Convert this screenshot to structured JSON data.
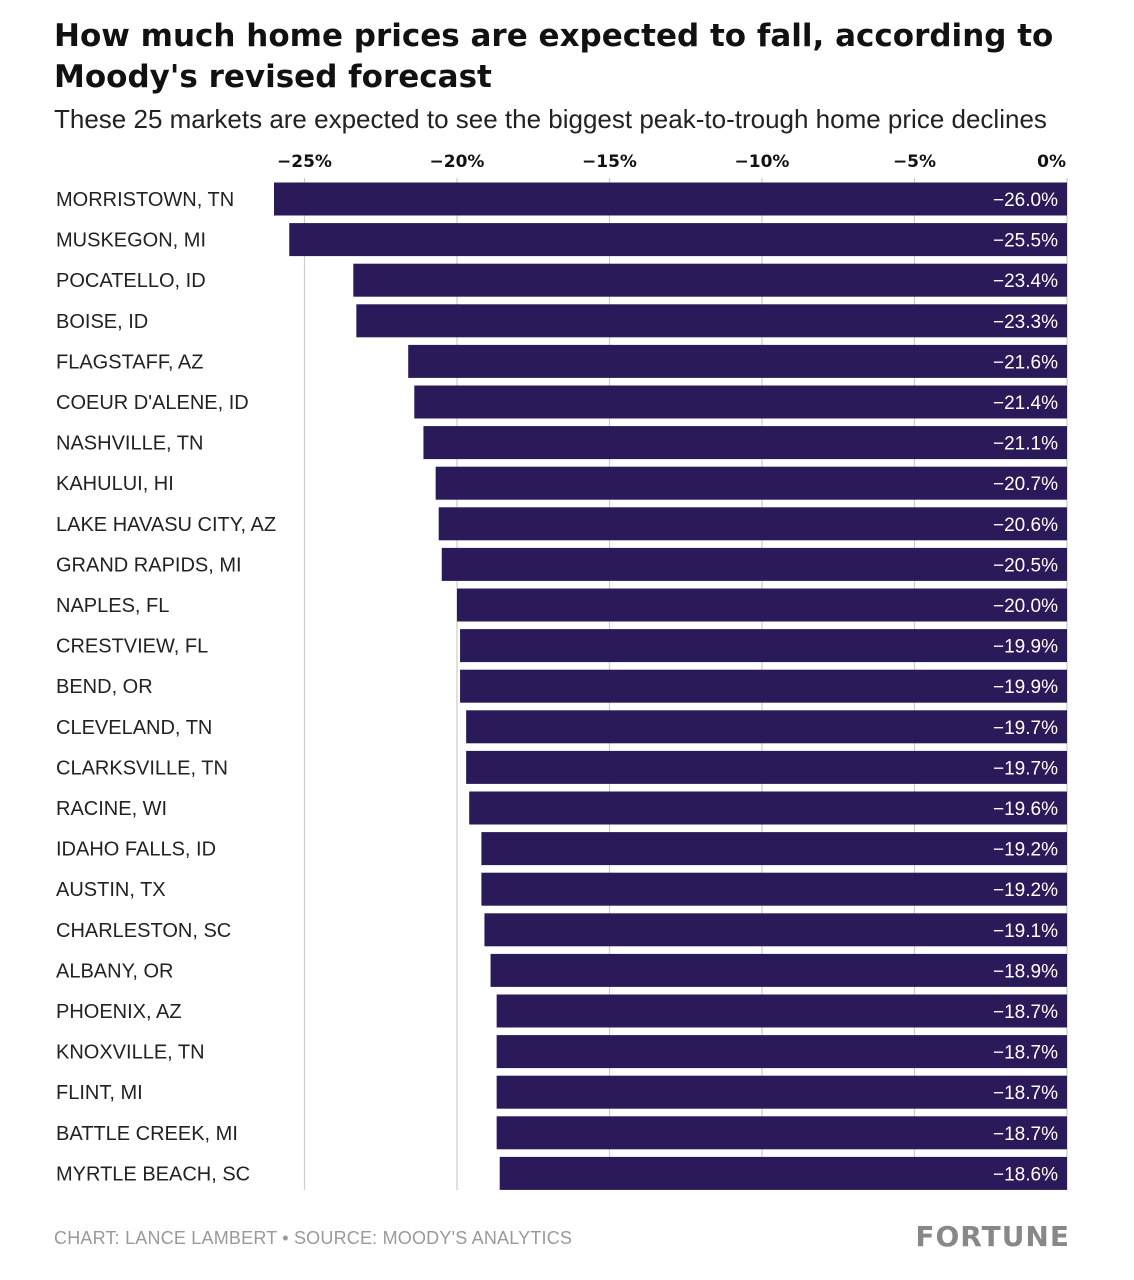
{
  "title": "How much home prices are expected to fall, according to Moody's revised forecast",
  "subtitle": "These 25 markets are expected to see the biggest peak-to-trough home price declines",
  "footer": {
    "credit": "CHART: LANCE LAMBERT • SOURCE: MOODY'S ANALYTICS",
    "logo": "FORTUNE"
  },
  "colors": {
    "bar": "#2a1a59",
    "label_text": "#ffffff",
    "grid": "#cccccc"
  },
  "chart_data": {
    "type": "bar",
    "orientation": "horizontal",
    "xlim": [
      -27,
      0
    ],
    "x_ticks": [
      {
        "value": -25,
        "label": "−25%"
      },
      {
        "value": -20,
        "label": "−20%"
      },
      {
        "value": -15,
        "label": "−15%"
      },
      {
        "value": -10,
        "label": "−10%"
      },
      {
        "value": -5,
        "label": "−5%"
      },
      {
        "value": 0,
        "label": "0%"
      }
    ],
    "categories": [
      "MORRISTOWN, TN",
      "MUSKEGON, MI",
      "POCATELLO, ID",
      "BOISE, ID",
      "FLAGSTAFF, AZ",
      "COEUR D'ALENE, ID",
      "NASHVILLE, TN",
      "KAHULUI, HI",
      "LAKE HAVASU CITY, AZ",
      "GRAND RAPIDS, MI",
      "NAPLES, FL",
      "CRESTVIEW, FL",
      "BEND, OR",
      "CLEVELAND, TN",
      "CLARKSVILLE, TN",
      "RACINE, WI",
      "IDAHO FALLS, ID",
      "AUSTIN, TX",
      "CHARLESTON, SC",
      "ALBANY, OR",
      "PHOENIX, AZ",
      "KNOXVILLE, TN",
      "FLINT, MI",
      "BATTLE CREEK, MI",
      "MYRTLE BEACH, SC"
    ],
    "values": [
      -26.0,
      -25.5,
      -23.4,
      -23.3,
      -21.6,
      -21.4,
      -21.1,
      -20.7,
      -20.6,
      -20.5,
      -20.0,
      -19.9,
      -19.9,
      -19.7,
      -19.7,
      -19.6,
      -19.2,
      -19.2,
      -19.1,
      -18.9,
      -18.7,
      -18.7,
      -18.7,
      -18.7,
      -18.6
    ],
    "value_labels": [
      "−26.0%",
      "−25.5%",
      "−23.4%",
      "−23.3%",
      "−21.6%",
      "−21.4%",
      "−21.1%",
      "−20.7%",
      "−20.6%",
      "−20.5%",
      "−20.0%",
      "−19.9%",
      "−19.9%",
      "−19.7%",
      "−19.7%",
      "−19.6%",
      "−19.2%",
      "−19.2%",
      "−19.1%",
      "−18.9%",
      "−18.7%",
      "−18.7%",
      "−18.7%",
      "−18.7%",
      "−18.6%"
    ],
    "grid": true
  }
}
